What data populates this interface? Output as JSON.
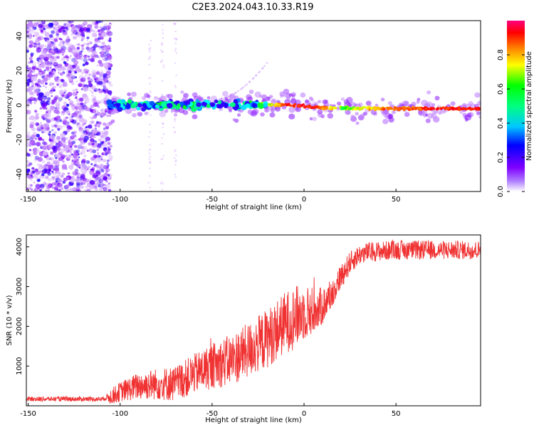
{
  "title": "C2E3.2024.043.10.33.R19",
  "colors": {
    "snr_line": "#f03232",
    "spec_ridge": "#ff0000"
  },
  "chart_data": [
    {
      "type": "heatmap",
      "xlabel": "Height of straight line (km)",
      "ylabel": "Frequency (Hz)",
      "xlim": [
        -151,
        96
      ],
      "ylim": [
        -50,
        49
      ],
      "xticks": [
        -150,
        -100,
        -50,
        0,
        50
      ],
      "yticks": [
        -40,
        -20,
        0,
        20,
        40
      ],
      "grid": false,
      "colorbar": {
        "label": "Normalized spectral amplitude",
        "range": [
          0,
          1
        ],
        "ticks": [
          "0.0",
          "0.2",
          "0.4",
          "0.6",
          "0.8"
        ],
        "colormap": [
          "#ffffff",
          "#8000ff",
          "#0000ff",
          "#00ffff",
          "#00ff00",
          "#ffff00",
          "#ff8000",
          "#ff0000",
          "#ff0080"
        ]
      },
      "ridge": {
        "frequency": [
          [
            -105,
            0.0
          ],
          [
            -80,
            0.0
          ],
          [
            -50,
            0.5
          ],
          [
            -35,
            0.0
          ],
          [
            -20,
            0.5
          ],
          [
            -5,
            0.0
          ],
          [
            10,
            -1.5
          ],
          [
            50,
            -2.0
          ],
          [
            95,
            -2.0
          ]
        ],
        "amplitude": [
          [
            -105,
            0.45
          ],
          [
            -80,
            0.5
          ],
          [
            -60,
            0.5
          ],
          [
            -45,
            0.45
          ],
          [
            -30,
            0.5
          ],
          [
            -20,
            0.65
          ],
          [
            -10,
            0.9
          ],
          [
            5,
            0.95
          ],
          [
            20,
            0.6
          ],
          [
            45,
            0.85
          ],
          [
            95,
            0.95
          ]
        ]
      }
    },
    {
      "type": "line",
      "xlabel": "Height of straight line (km)",
      "ylabel": "SNR (10 * v/v)",
      "xlim": [
        -151,
        96
      ],
      "ylim": [
        0,
        4300
      ],
      "xticks": [
        -150,
        -100,
        -50,
        0,
        50
      ],
      "yticks": [
        1000,
        2000,
        3000,
        4000
      ],
      "grid": false,
      "series": [
        {
          "mean": [
            [
              -151,
              170
            ],
            [
              -110,
              170
            ],
            [
              -105,
              230
            ],
            [
              -100,
              350
            ],
            [
              -90,
              500
            ],
            [
              -80,
              550
            ],
            [
              -70,
              550
            ],
            [
              -60,
              800
            ],
            [
              -50,
              1000
            ],
            [
              -40,
              1150
            ],
            [
              -30,
              1400
            ],
            [
              -20,
              1700
            ],
            [
              -10,
              2100
            ],
            [
              0,
              2350
            ],
            [
              5,
              2400
            ],
            [
              10,
              2500
            ],
            [
              15,
              2800
            ],
            [
              20,
              3250
            ],
            [
              25,
              3600
            ],
            [
              30,
              3800
            ],
            [
              35,
              3870
            ],
            [
              50,
              3920
            ],
            [
              96,
              3920
            ]
          ],
          "spread": [
            [
              -151,
              60
            ],
            [
              -108,
              60
            ],
            [
              -105,
              200
            ],
            [
              -90,
              350
            ],
            [
              -60,
              500
            ],
            [
              -40,
              650
            ],
            [
              -20,
              750
            ],
            [
              -5,
              800
            ],
            [
              5,
              600
            ],
            [
              15,
              350
            ],
            [
              30,
              250
            ],
            [
              96,
              230
            ]
          ]
        }
      ]
    }
  ]
}
